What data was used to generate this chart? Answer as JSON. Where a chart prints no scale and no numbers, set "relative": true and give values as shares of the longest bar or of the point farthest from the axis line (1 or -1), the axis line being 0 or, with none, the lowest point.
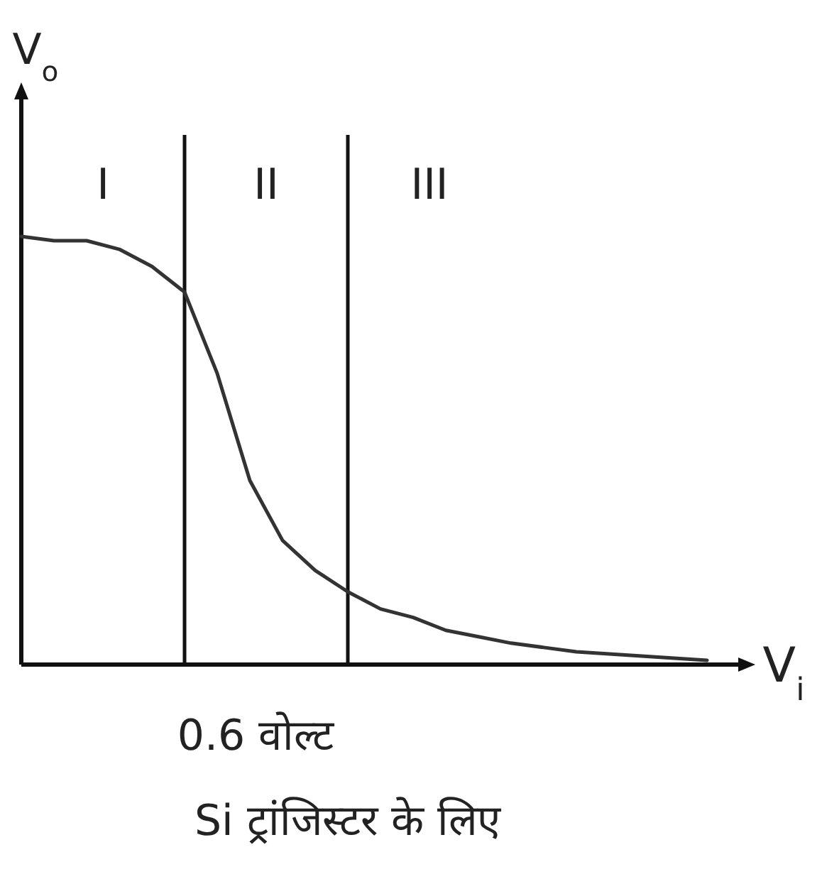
{
  "chart_data": {
    "type": "line",
    "relative": true,
    "xlabel": "V$_{i}$",
    "ylabel": "V$_{o}$",
    "color": "#333333",
    "categories": [
      null,
      null,
      null,
      null,
      null,
      null,
      null,
      null,
      null,
      null,
      null,
      null,
      null,
      null,
      null,
      null,
      null,
      null,
      null,
      null,
      null,
      null
    ],
    "values": [
      1.0,
      0.99,
      0.99,
      0.97,
      0.93,
      0.87,
      0.68,
      0.43,
      0.29,
      0.22,
      0.17,
      0.13,
      0.11,
      0.08,
      0.065,
      0.05,
      0.04,
      0.03,
      0.025,
      0.02,
      0.015,
      0.01
    ],
    "annotations": [
      "I",
      "II",
      "III",
      "0.6 वोल्ट",
      "Si ट्रांजिस्टर के लिए"
    ]
  }
}
